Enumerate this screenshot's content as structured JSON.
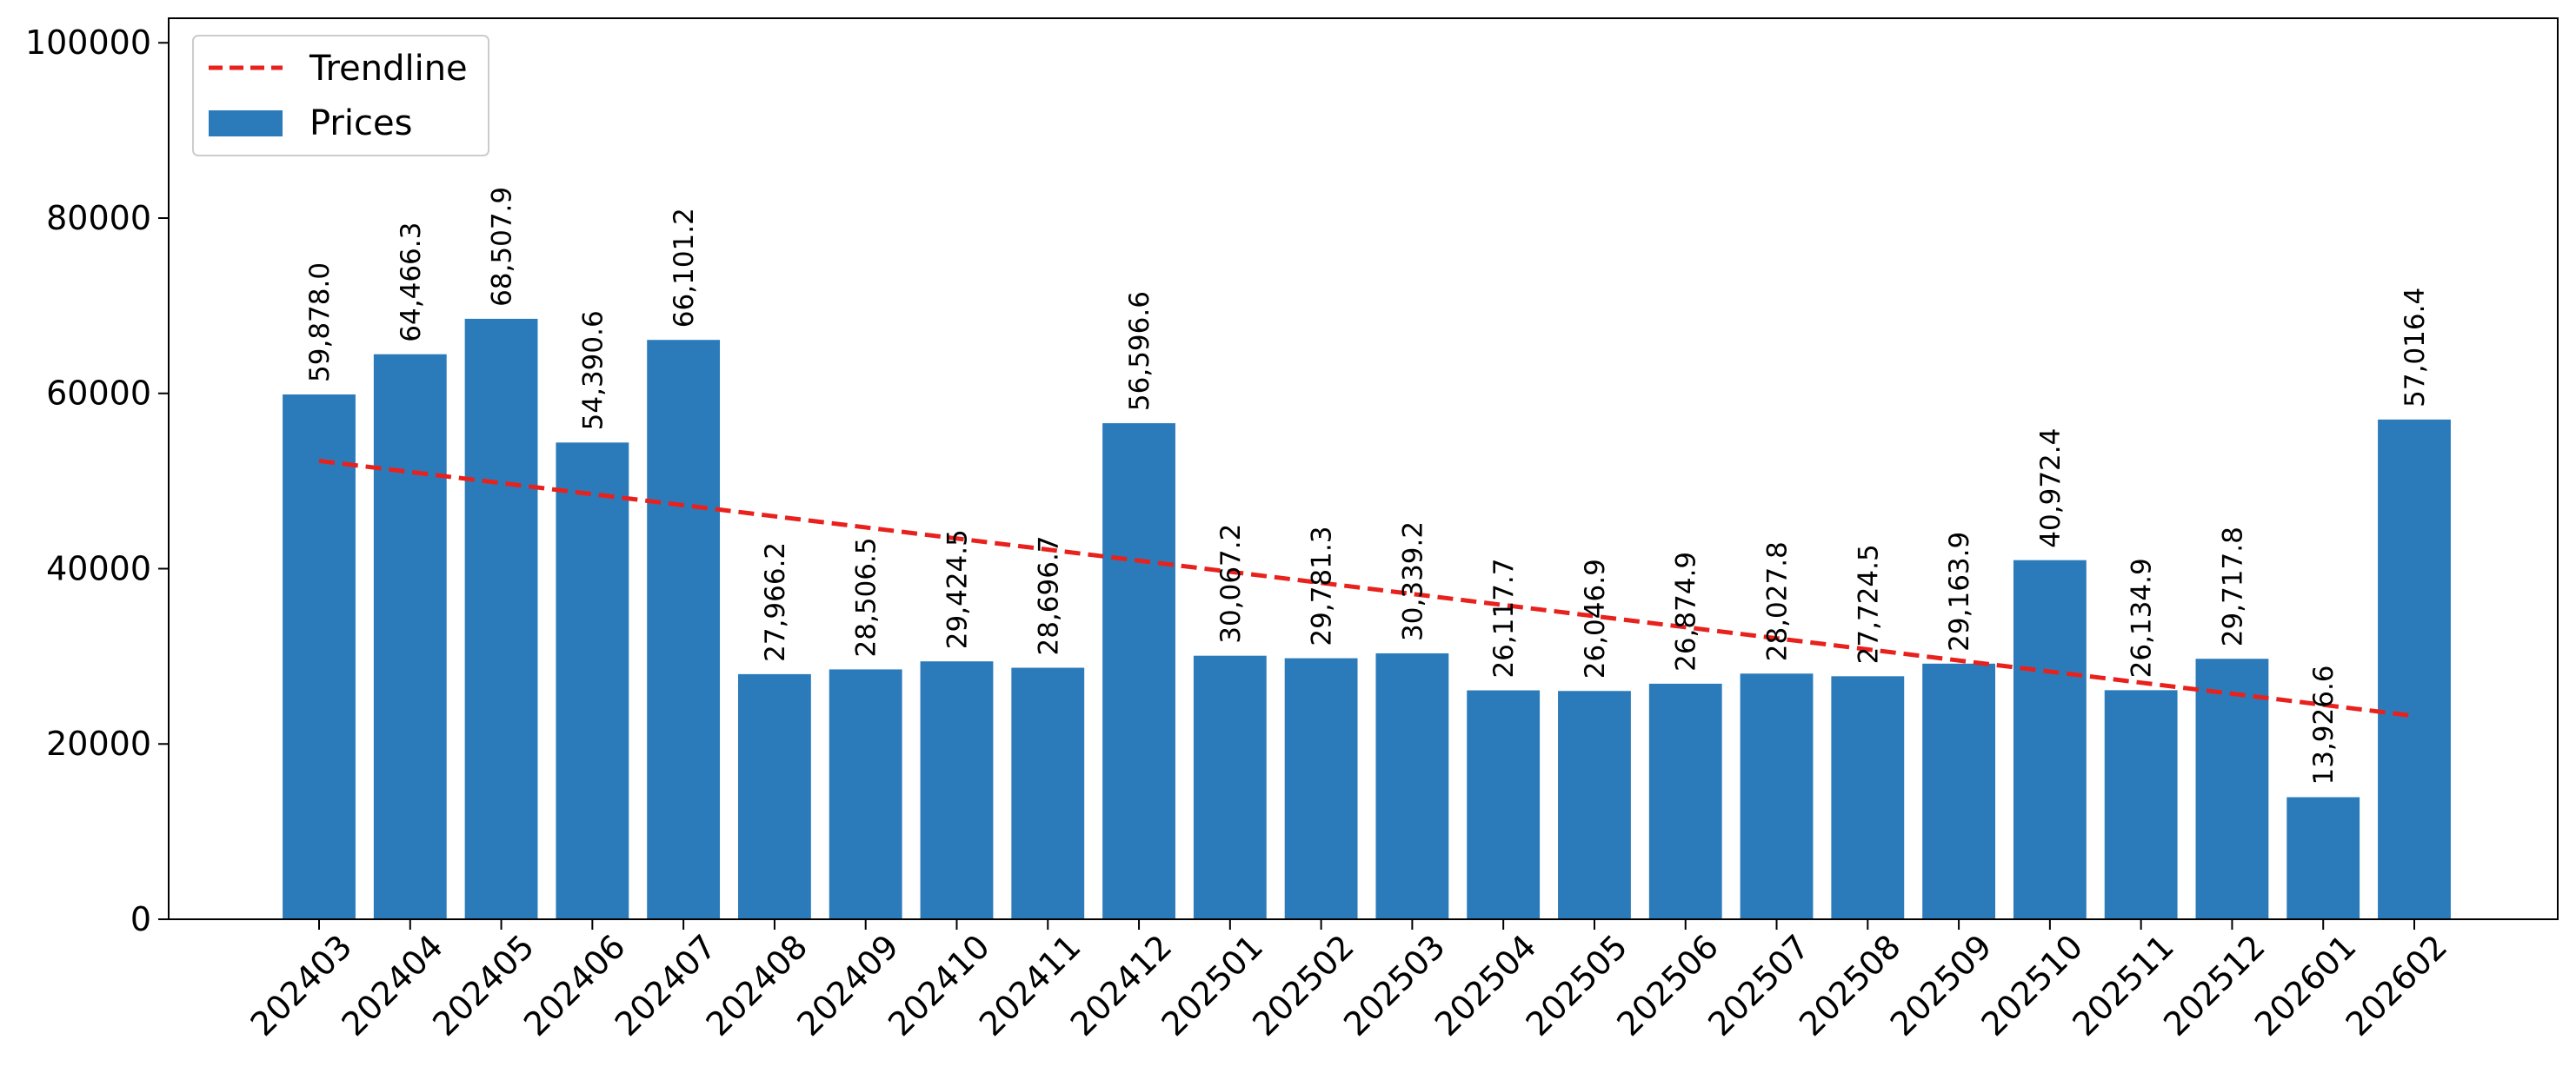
{
  "chart_data": {
    "type": "bar",
    "categories": [
      "202403",
      "202404",
      "202405",
      "202406",
      "202407",
      "202408",
      "202409",
      "202410",
      "202411",
      "202412",
      "202501",
      "202502",
      "202503",
      "202504",
      "202505",
      "202506",
      "202507",
      "202508",
      "202509",
      "202510",
      "202511",
      "202512",
      "202601",
      "202602"
    ],
    "series": [
      {
        "name": "Prices",
        "type": "bar",
        "color": "#2b7bba",
        "values": [
          59878.0,
          64466.3,
          68507.9,
          54390.6,
          66101.2,
          27966.2,
          28506.5,
          29424.5,
          28696.7,
          56596.6,
          30067.2,
          29781.3,
          30339.2,
          26117.7,
          26046.9,
          26874.9,
          28027.8,
          27724.5,
          29163.9,
          40972.4,
          26134.9,
          29717.8,
          13926.6,
          57016.4
        ]
      },
      {
        "name": "Trendline",
        "type": "line",
        "style": "dashed",
        "color": "#e8211d",
        "values": [
          52300,
          23200
        ],
        "x": [
          "202403",
          "202602"
        ]
      }
    ],
    "data_labels": [
      "59,878.0",
      "64,466.3",
      "68,507.9",
      "54,390.6",
      "66,101.2",
      "27,966.2",
      "28,506.5",
      "29,424.5",
      "28,696.7",
      "56,596.6",
      "30,067.2",
      "29,781.3",
      "30,339.2",
      "26,117.7",
      "26,046.9",
      "26,874.9",
      "28,027.8",
      "27,724.5",
      "29,163.9",
      "40,972.4",
      "26,134.9",
      "29,717.8",
      "13,926.6",
      "57,016.4"
    ],
    "y_ticks": [
      0,
      20000,
      40000,
      60000,
      80000,
      100000
    ],
    "ylim": [
      0,
      102800
    ],
    "legend": {
      "position": "top-left",
      "entries": [
        "Trendline",
        "Prices"
      ]
    },
    "grid": false,
    "title": "",
    "xlabel": "",
    "ylabel": ""
  }
}
